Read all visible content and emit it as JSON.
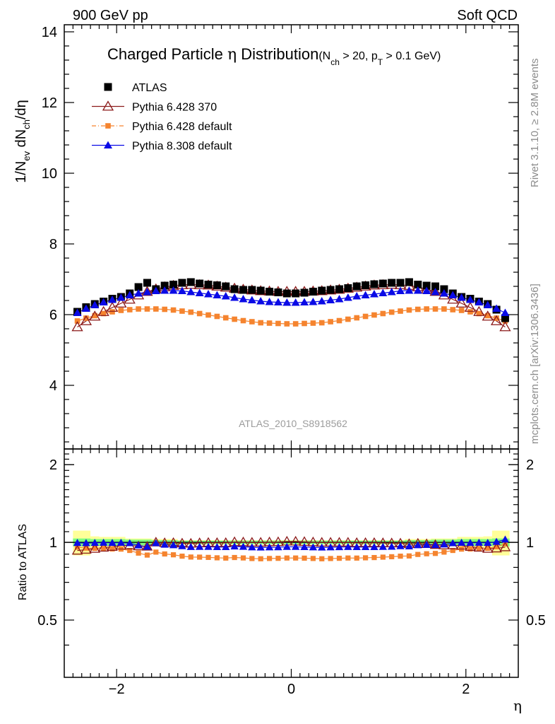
{
  "header": {
    "left": "900 GeV pp",
    "right": "Soft QCD",
    "analysis": "ATLAS_2010_S8918562"
  },
  "side_labels": {
    "rivet": "Rivet 3.1.10, ≥ 2.8M events",
    "mcplots": "mcplots.cern.ch [arXiv:1306.3436]"
  },
  "title": {
    "main_prefix": "Charged Particle ",
    "eta": "η",
    "main_suffix": " Distribution",
    "cut_open": "(N",
    "cut_sub1": "ch",
    "cut_mid": " > 20, p",
    "cut_sub2": "T",
    "cut_close": " > 0.1 GeV)"
  },
  "axes": {
    "ylabel_a": "1/N",
    "ylabel_sub1": "ev",
    "ylabel_b": " dN",
    "ylabel_sub2": "ch",
    "ylabel_c": "/dη",
    "ratio_ylabel": "Ratio to ATLAS",
    "xlabel": "η"
  },
  "colors": {
    "atlas": "#000000",
    "pythia6_370": "#8b1a1a",
    "pythia6_default": "#f5842f",
    "pythia8": "#0a0ae6",
    "band_green": "#7fff7f",
    "band_yellow": "#ffff99"
  },
  "chart_data": {
    "type": "scatter",
    "xlabel": "η",
    "ylabel": "1/N_ev dN_ch/dη",
    "xlim": [
      -2.6,
      2.6
    ],
    "ylim": [
      2.2,
      14.2
    ],
    "ratio_ylim": [
      0.3,
      2.3
    ],
    "main_y_ticks": [
      {
        "value": 4,
        "label": "4"
      },
      {
        "value": 6,
        "label": "6"
      },
      {
        "value": 8,
        "label": "8"
      },
      {
        "value": 10,
        "label": "10"
      },
      {
        "value": 12,
        "label": "12"
      },
      {
        "value": 14,
        "label": "14"
      }
    ],
    "ratio_y_ticks": [
      {
        "value": 0.5,
        "label": "0.5"
      },
      {
        "value": 1,
        "label": "1"
      },
      {
        "value": 2,
        "label": "2"
      }
    ],
    "x_ticks": [
      {
        "value": -2,
        "label": "−2"
      },
      {
        "value": 0,
        "label": "0"
      },
      {
        "value": 2,
        "label": "2"
      }
    ],
    "x": [
      -2.45,
      -2.35,
      -2.25,
      -2.15,
      -2.05,
      -1.95,
      -1.85,
      -1.75,
      -1.65,
      -1.55,
      -1.45,
      -1.35,
      -1.25,
      -1.15,
      -1.05,
      -0.95,
      -0.85,
      -0.75,
      -0.65,
      -0.55,
      -0.45,
      -0.35,
      -0.25,
      -0.15,
      -0.05,
      0.05,
      0.15,
      0.25,
      0.35,
      0.45,
      0.55,
      0.65,
      0.75,
      0.85,
      0.95,
      1.05,
      1.15,
      1.25,
      1.35,
      1.45,
      1.55,
      1.65,
      1.75,
      1.85,
      1.95,
      2.05,
      2.15,
      2.25,
      2.35,
      2.45
    ],
    "legend": [
      {
        "label": "ATLAS",
        "series": "atlas"
      },
      {
        "label": "Pythia 6.428 370",
        "series": "p6_370"
      },
      {
        "label": "Pythia 6.428 default",
        "series": "p6_default"
      },
      {
        "label": "Pythia 8.308 default",
        "series": "p8"
      }
    ],
    "series": [
      {
        "name": "ATLAS",
        "key": "atlas",
        "values": [
          6.08,
          6.21,
          6.3,
          6.37,
          6.45,
          6.5,
          6.6,
          6.78,
          6.9,
          6.72,
          6.82,
          6.85,
          6.9,
          6.92,
          6.88,
          6.85,
          6.83,
          6.8,
          6.72,
          6.7,
          6.7,
          6.68,
          6.65,
          6.63,
          6.6,
          6.6,
          6.62,
          6.65,
          6.68,
          6.7,
          6.72,
          6.75,
          6.8,
          6.83,
          6.86,
          6.88,
          6.9,
          6.9,
          6.92,
          6.85,
          6.82,
          6.8,
          6.72,
          6.6,
          6.5,
          6.45,
          6.37,
          6.3,
          6.14,
          5.9
        ]
      },
      {
        "name": "Pythia 6.428 370",
        "key": "p6_370",
        "values": [
          5.65,
          5.82,
          5.95,
          6.08,
          6.2,
          6.32,
          6.43,
          6.55,
          6.65,
          6.72,
          6.78,
          6.82,
          6.84,
          6.85,
          6.84,
          6.83,
          6.8,
          6.77,
          6.74,
          6.71,
          6.69,
          6.67,
          6.66,
          6.65,
          6.65,
          6.65,
          6.65,
          6.66,
          6.67,
          6.69,
          6.71,
          6.74,
          6.77,
          6.8,
          6.83,
          6.84,
          6.85,
          6.84,
          6.82,
          6.78,
          6.72,
          6.65,
          6.55,
          6.43,
          6.32,
          6.2,
          6.08,
          5.95,
          5.82,
          5.65
        ]
      },
      {
        "name": "Pythia 6.428 default",
        "key": "p6_default",
        "values": [
          5.82,
          5.9,
          5.97,
          6.03,
          6.08,
          6.12,
          6.14,
          6.16,
          6.16,
          6.16,
          6.15,
          6.13,
          6.1,
          6.07,
          6.03,
          5.99,
          5.95,
          5.91,
          5.87,
          5.83,
          5.8,
          5.77,
          5.76,
          5.75,
          5.74,
          5.74,
          5.75,
          5.76,
          5.77,
          5.8,
          5.83,
          5.87,
          5.91,
          5.95,
          5.99,
          6.03,
          6.07,
          6.1,
          6.13,
          6.15,
          6.16,
          6.16,
          6.16,
          6.14,
          6.12,
          6.08,
          6.03,
          5.97,
          5.9,
          5.82
        ]
      },
      {
        "name": "Pythia 8.308 default",
        "key": "p8",
        "values": [
          6.05,
          6.17,
          6.27,
          6.35,
          6.42,
          6.48,
          6.55,
          6.6,
          6.64,
          6.67,
          6.68,
          6.68,
          6.67,
          6.64,
          6.61,
          6.58,
          6.55,
          6.52,
          6.48,
          6.44,
          6.41,
          6.38,
          6.36,
          6.35,
          6.34,
          6.34,
          6.35,
          6.36,
          6.38,
          6.41,
          6.44,
          6.48,
          6.52,
          6.55,
          6.58,
          6.61,
          6.64,
          6.67,
          6.68,
          6.68,
          6.67,
          6.64,
          6.6,
          6.55,
          6.48,
          6.42,
          6.35,
          6.27,
          6.17,
          6.05
        ]
      }
    ],
    "bands": {
      "yellow_edges": [
        -2.5,
        -2.3,
        -2.2,
        -1.9,
        -1.6,
        -1.3,
        1.3,
        1.6,
        1.9,
        2.2,
        2.3,
        2.5
      ],
      "yellow_half": [
        0.11,
        0.055,
        0.05,
        0.035,
        0.03,
        0.02,
        0.03,
        0.035,
        0.05,
        0.055,
        0.11
      ],
      "green_edges": [
        -2.5,
        -2.3,
        -1.9,
        -1.6,
        -1.3,
        1.3,
        1.6,
        1.9,
        2.3,
        2.5
      ],
      "green_half": [
        0.035,
        0.03,
        0.025,
        0.02,
        0.015,
        0.02,
        0.025,
        0.03,
        0.035
      ]
    }
  }
}
